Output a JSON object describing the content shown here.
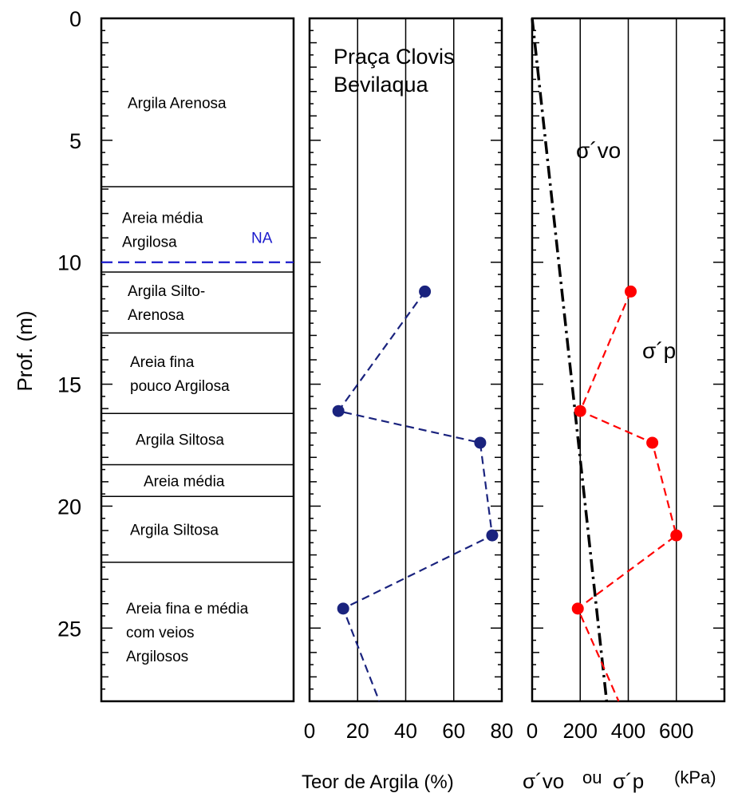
{
  "chart_data": {
    "type": "line",
    "y_axis": {
      "label": "Prof. (m)",
      "range": [
        0,
        28
      ],
      "inverted": true,
      "major_ticks": [
        0,
        5,
        10,
        15,
        20,
        25
      ],
      "major_labels": [
        "0",
        "5",
        "10",
        "15",
        "20",
        "25"
      ]
    },
    "soil_column": {
      "layers": [
        {
          "name": "Argila Arenosa",
          "lines": [
            "Argila Arenosa"
          ],
          "top": 0,
          "bottom": 6.9
        },
        {
          "name": "Areia média Argilosa",
          "lines": [
            "Areia média",
            "Argilosa"
          ],
          "top": 6.9,
          "bottom": 10.4
        },
        {
          "name": "Argila Silto-Arenosa",
          "lines": [
            "Argila Silto-",
            "Arenosa"
          ],
          "top": 10.4,
          "bottom": 12.9
        },
        {
          "name": "Areia fina pouco Argilosa",
          "lines": [
            "Areia fina",
            "pouco Argilosa"
          ],
          "top": 12.9,
          "bottom": 16.2
        },
        {
          "name": "Argila Siltosa",
          "lines": [
            "Argila Siltosa"
          ],
          "top": 16.2,
          "bottom": 18.3
        },
        {
          "name": "Areia média",
          "lines": [
            "Areia média"
          ],
          "top": 18.3,
          "bottom": 19.6
        },
        {
          "name": "Argila Siltosa",
          "lines": [
            "Argila Siltosa"
          ],
          "top": 19.6,
          "bottom": 22.3
        },
        {
          "name": "Areia fina e média com veios Argilosos",
          "lines": [
            "Areia fina e média",
            "com veios",
            "Argilosos"
          ],
          "top": 22.3,
          "bottom": 28
        }
      ],
      "water_table": {
        "label": "NA",
        "depth": 10,
        "color": "#1a1acc"
      }
    },
    "panels": [
      {
        "id": "clay-content",
        "title_lines": [
          "Praça Clovis",
          "Bevilaqua"
        ],
        "xlabel": "Teor de Argila (%)",
        "xlim": [
          0,
          80
        ],
        "x_ticks": [
          0,
          20,
          40,
          60,
          80
        ],
        "x_tick_labels": [
          "0",
          "20",
          "40",
          "60",
          "80"
        ],
        "grid_x": [
          20,
          40,
          60
        ],
        "series": [
          {
            "color": "#1a237e",
            "line_style": "dashed",
            "points": [
              {
                "x": 48,
                "y": 11.2
              },
              {
                "x": 12,
                "y": 16.1
              },
              {
                "x": 71,
                "y": 17.4
              },
              {
                "x": 76,
                "y": 21.2
              },
              {
                "x": 14,
                "y": 24.2
              },
              {
                "x": 29,
                "y": 28
              }
            ],
            "marker_count": 5
          }
        ]
      },
      {
        "id": "stress",
        "xlabel_parts": {
          "sigma_vo": "σ´vo",
          "ou": "ou",
          "sigma_p": "σ´p",
          "unit": "(kPa)"
        },
        "xlim": [
          0,
          800
        ],
        "x_ticks": [
          0,
          200,
          400,
          600
        ],
        "x_tick_labels": [
          "0",
          "200",
          "400",
          "600"
        ],
        "grid_x": [
          200,
          400,
          600
        ],
        "series": [
          {
            "label": "σ´vo",
            "color": "#000000",
            "line_style": "dash-dot",
            "points": [
              {
                "x": 0,
                "y": 0
              },
              {
                "x": 310,
                "y": 28
              }
            ]
          },
          {
            "label": "σ´p",
            "color": "#ff0000",
            "line_style": "dashed",
            "points": [
              {
                "x": 410,
                "y": 11.2
              },
              {
                "x": 200,
                "y": 16.1
              },
              {
                "x": 500,
                "y": 17.4
              },
              {
                "x": 600,
                "y": 21.2
              },
              {
                "x": 190,
                "y": 24.2
              },
              {
                "x": 360,
                "y": 28
              }
            ],
            "marker_count": 5
          }
        ]
      }
    ]
  }
}
